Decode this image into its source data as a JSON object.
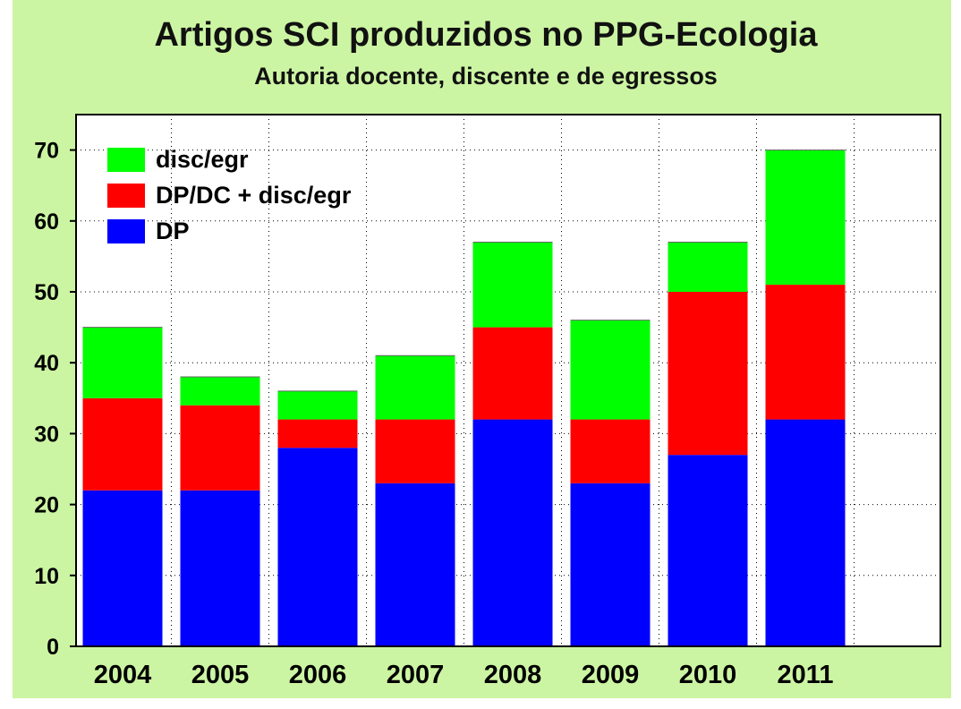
{
  "chart_data": {
    "type": "bar",
    "stacked": true,
    "title": "Artigos SCI produzidos no PPG-Ecologia",
    "subtitle": "Autoria docente, discente e de egressos",
    "xlabel": "",
    "ylabel": "",
    "categories": [
      "2004",
      "2005",
      "2006",
      "2007",
      "2008",
      "2009",
      "2010",
      "2011"
    ],
    "series": [
      {
        "name": "DP",
        "color": "#0000ff",
        "values": [
          22,
          22,
          28,
          23,
          32,
          23,
          27,
          32
        ]
      },
      {
        "name": "DP/DC + disc/egr",
        "color": "#ff0000",
        "values": [
          13,
          12,
          4,
          9,
          13,
          9,
          23,
          19
        ]
      },
      {
        "name": "disc/egr",
        "color": "#00ff00",
        "values": [
          10,
          4,
          4,
          9,
          12,
          14,
          7,
          19
        ]
      }
    ],
    "totals": [
      45,
      38,
      36,
      41,
      57,
      46,
      57,
      70
    ],
    "ylim": [
      0,
      75
    ],
    "yticks": [
      0,
      10,
      20,
      30,
      40,
      50,
      60,
      70
    ],
    "grid": true,
    "legend_position": "top-left",
    "legend_order": [
      "disc/egr",
      "DP/DC + disc/egr",
      "DP"
    ],
    "background_color": "#ccf5a3",
    "plot_background_color": "#ffffff"
  }
}
